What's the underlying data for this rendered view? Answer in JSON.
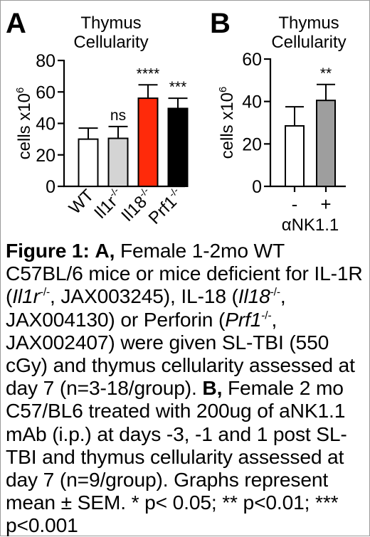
{
  "chart_data": [
    {
      "panel_letter": "A",
      "type": "bar",
      "title_line1": "Thymus",
      "title_line2": "Cellularity",
      "ylabel": "cells x10",
      "ylabel_exponent": "6",
      "ylim": [
        0,
        80
      ],
      "yticks": [
        0,
        20,
        40,
        60,
        80
      ],
      "categories": [
        {
          "base": "WT",
          "sup": ""
        },
        {
          "base": "Il1r",
          "sup": "-/-"
        },
        {
          "base": "Il18",
          "sup": "-/-"
        },
        {
          "base": "Prf1",
          "sup": "-/-"
        }
      ],
      "values": [
        30,
        30.5,
        56,
        49.5
      ],
      "errors": [
        7,
        7.5,
        8.5,
        6.5
      ],
      "significance": [
        "",
        "ns",
        "****",
        "***"
      ],
      "colors": [
        "#ffffff",
        "#d4d4d4",
        "#ff2a0a",
        "#000000"
      ]
    },
    {
      "panel_letter": "B",
      "type": "bar",
      "title_line1": "Thymus",
      "title_line2": "Cellularity",
      "ylabel": "cells x10",
      "ylabel_exponent": "6",
      "ylim": [
        0,
        60
      ],
      "yticks": [
        0,
        20,
        40,
        60
      ],
      "categories": [
        "-",
        "+"
      ],
      "xlabel": "αNK1.1",
      "values": [
        28.5,
        40.5
      ],
      "errors": [
        9,
        7.5
      ],
      "significance": [
        "",
        "**"
      ],
      "colors": [
        "#ffffff",
        "#9e9e9e"
      ]
    }
  ],
  "caption": {
    "fig_label": "Figure 1:",
    "a_label": "A,",
    "a_1": " Female 1-2mo WT C57BL/6 mice or mice deficient for IL-1R (",
    "a_gene1": "Il1r",
    "a_2": ", JAX003245), IL-18 (",
    "a_gene2": "Il18",
    "a_3": ", JAX004130) or Perforin (",
    "a_gene3": "Prf1",
    "a_4": ", JAX002407) were given SL-TBI (550 cGy) and thymus cellularity assessed at day 7 (n=3-18/group). ",
    "ko_sup": "-/-",
    "b_label": "B,",
    "b_text": " Female 2 mo C57/BL6 treated with 200ug of aNK1.1 mAb (i.p.) at days -3, -1 and 1 post SL-TBI  and thymus cellularity assessed at day 7 (n=9/group). Graphs represent mean ± SEM.  * p< 0.05; ** p<0.01; *** p<0.001"
  }
}
